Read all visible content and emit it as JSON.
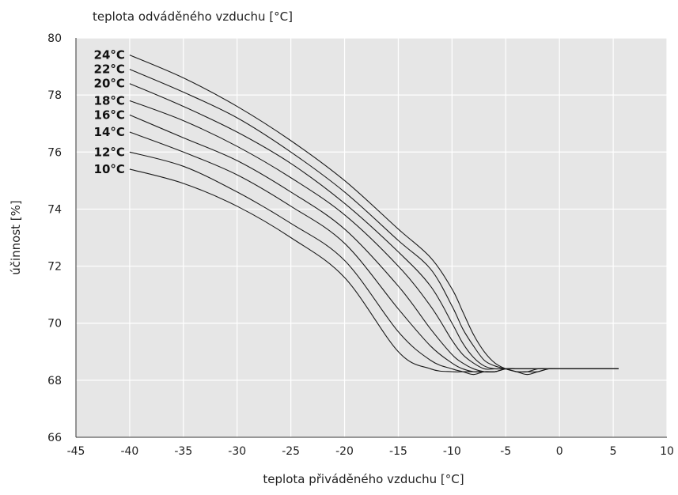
{
  "chart_data": {
    "type": "line",
    "title": "teplota odváděného vzduchu [°C]",
    "xlabel": "teplota přiváděného vzduchu [°C]",
    "ylabel": "účinnost [%]",
    "xlim": [
      -45,
      10
    ],
    "ylim": [
      66,
      80
    ],
    "xticks": [
      -45,
      -40,
      -35,
      -30,
      -25,
      -20,
      -15,
      -10,
      -5,
      0,
      5,
      10
    ],
    "yticks": [
      66,
      68,
      70,
      72,
      74,
      76,
      78,
      80
    ],
    "grid": true,
    "colors": {
      "plot_background": "#e6e6e6",
      "grid": "#ffffff",
      "line": "#1a1a1a"
    },
    "series": [
      {
        "name": "24°C",
        "x": [
          -40,
          -35,
          -30,
          -25,
          -20,
          -15,
          -12,
          -10,
          -9,
          -8,
          -7,
          -6,
          -5,
          -4,
          -3,
          -2,
          -1,
          0,
          5.5
        ],
        "y": [
          79.4,
          78.6,
          77.6,
          76.4,
          75.0,
          73.3,
          72.3,
          71.2,
          70.4,
          69.6,
          69.0,
          68.6,
          68.4,
          68.3,
          68.2,
          68.3,
          68.4,
          68.4,
          68.4
        ]
      },
      {
        "name": "22°C",
        "x": [
          -40,
          -35,
          -30,
          -25,
          -20,
          -15,
          -12,
          -10,
          -9,
          -8,
          -7,
          -6,
          -5,
          -4,
          -3,
          -2,
          -1,
          0,
          5.5
        ],
        "y": [
          78.9,
          78.1,
          77.2,
          76.0,
          74.6,
          72.9,
          71.9,
          70.6,
          69.8,
          69.2,
          68.7,
          68.5,
          68.4,
          68.3,
          68.3,
          68.3,
          68.4,
          68.4,
          68.4
        ]
      },
      {
        "name": "20°C",
        "x": [
          -40,
          -35,
          -30,
          -25,
          -20,
          -15,
          -12,
          -10,
          -9,
          -8,
          -7,
          -6,
          -5,
          -4,
          -3,
          -2,
          -1,
          0,
          5.5
        ],
        "y": [
          78.4,
          77.6,
          76.7,
          75.6,
          74.2,
          72.5,
          71.3,
          70.0,
          69.3,
          68.8,
          68.5,
          68.4,
          68.4,
          68.3,
          68.3,
          68.4,
          68.4,
          68.4,
          68.4
        ]
      },
      {
        "name": "18°C",
        "x": [
          -40,
          -35,
          -30,
          -25,
          -20,
          -15,
          -12,
          -10,
          -9,
          -8,
          -7,
          -6,
          -5,
          -4,
          -3,
          -2,
          -1,
          0,
          5.5
        ],
        "y": [
          77.8,
          77.1,
          76.2,
          75.1,
          73.8,
          72.0,
          70.6,
          69.4,
          68.9,
          68.6,
          68.4,
          68.4,
          68.4,
          68.4,
          68.4,
          68.4,
          68.4,
          68.4,
          68.4
        ]
      },
      {
        "name": "16°C",
        "x": [
          -40,
          -35,
          -30,
          -25,
          -20,
          -15,
          -12,
          -10,
          -9,
          -8,
          -7,
          -6,
          -5,
          -4,
          -3,
          -2,
          -1,
          0,
          5.5
        ],
        "y": [
          77.3,
          76.5,
          75.7,
          74.6,
          73.3,
          71.3,
          69.8,
          68.9,
          68.6,
          68.4,
          68.3,
          68.3,
          68.4,
          68.4,
          68.4,
          68.4,
          68.4,
          68.4,
          68.4
        ]
      },
      {
        "name": "14°C",
        "x": [
          -40,
          -35,
          -30,
          -25,
          -20,
          -15,
          -12,
          -10,
          -9,
          -8,
          -7,
          -6,
          -5,
          -4,
          -3,
          -2,
          -1,
          0,
          5.5
        ],
        "y": [
          76.7,
          76.0,
          75.2,
          74.1,
          72.8,
          70.5,
          69.2,
          68.6,
          68.4,
          68.3,
          68.3,
          68.3,
          68.4,
          68.4,
          68.4,
          68.4,
          68.4,
          68.4,
          68.4
        ]
      },
      {
        "name": "12°C",
        "x": [
          -40,
          -35,
          -30,
          -25,
          -20,
          -15,
          -12,
          -10,
          -9,
          -8,
          -7,
          -6,
          -5,
          -4,
          -3,
          -2,
          -1,
          0,
          5.5
        ],
        "y": [
          76.0,
          75.5,
          74.6,
          73.5,
          72.2,
          69.7,
          68.7,
          68.4,
          68.3,
          68.2,
          68.3,
          68.3,
          68.4,
          68.4,
          68.4,
          68.4,
          68.4,
          68.4,
          68.4
        ]
      },
      {
        "name": "10°C",
        "x": [
          -40,
          -35,
          -30,
          -25,
          -20,
          -15,
          -12,
          -10,
          -9,
          -8,
          -7,
          -6,
          -5,
          -4,
          -3,
          -2,
          -1,
          0,
          5.5
        ],
        "y": [
          75.4,
          74.9,
          74.1,
          73.0,
          71.6,
          69.0,
          68.4,
          68.3,
          68.3,
          68.3,
          68.3,
          68.3,
          68.4,
          68.4,
          68.4,
          68.4,
          68.4,
          68.4,
          68.4
        ]
      }
    ]
  }
}
